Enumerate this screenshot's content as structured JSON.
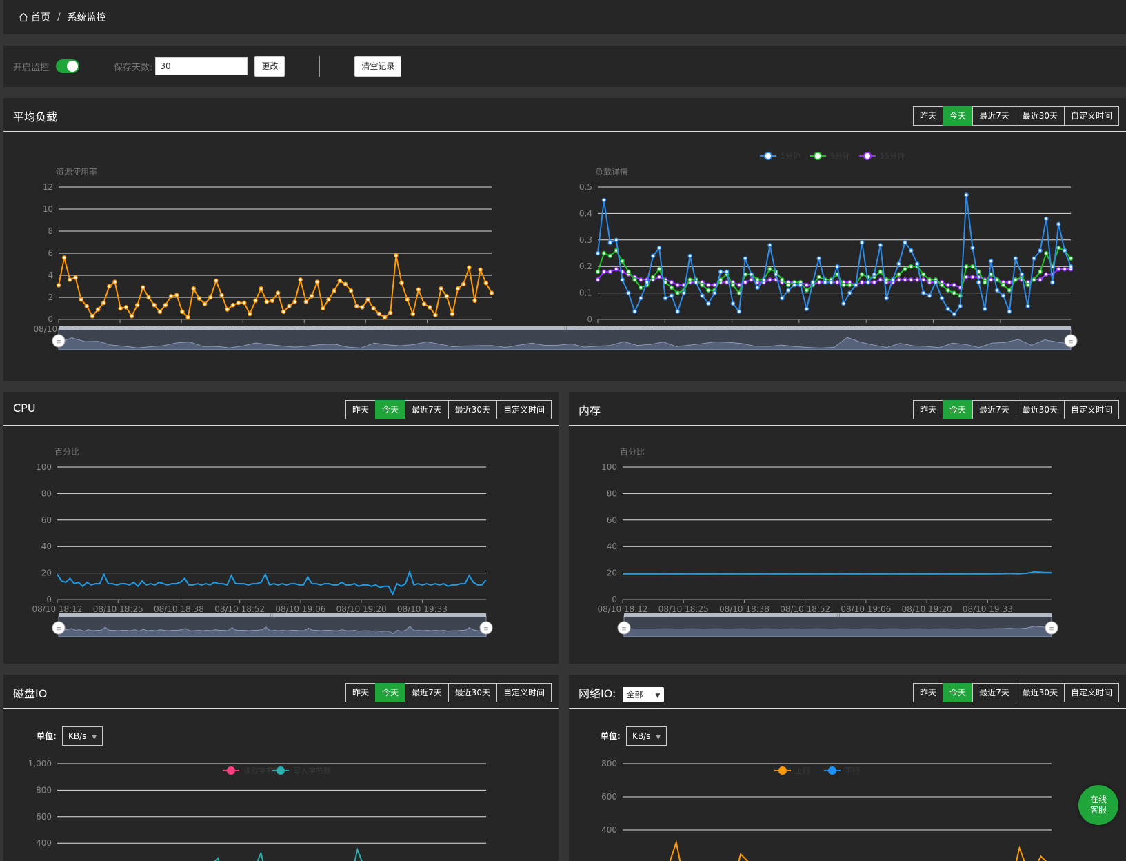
{
  "breadcrumb": {
    "home": "首页",
    "current": "系统监控"
  },
  "controls": {
    "monitor_label": "开启监控",
    "monitor_on": true,
    "days_label": "保存天数:",
    "days_value": "30",
    "change_label": "更改",
    "clear_label": "清空记录"
  },
  "range_buttons": [
    "昨天",
    "今天",
    "最近7天",
    "最近30天",
    "自定义时间"
  ],
  "active_range": "今天",
  "time_ticks": [
    "08/10 18:12",
    "08/10 18:25",
    "08/10 18:38",
    "08/10 18:52",
    "08/10 19:06",
    "08/10 19:20",
    "08/10 19:33"
  ],
  "load": {
    "title": "平均负载",
    "left_axis_title": "资源使用率",
    "right_axis_title": "负载详情",
    "legend": [
      "1分钟",
      "5分钟",
      "15分钟"
    ]
  },
  "cpu": {
    "title": "CPU",
    "axis_title": "百分比"
  },
  "memory": {
    "title": "内存",
    "axis_title": "百分比"
  },
  "disk": {
    "title": "磁盘IO",
    "unit_label": "单位:",
    "unit_value": "KB/s",
    "legend": [
      "读取字节数",
      "写入字节数"
    ]
  },
  "network": {
    "title": "网络IO:",
    "select_value": "全部",
    "unit_label": "单位:",
    "unit_value": "KB/s",
    "legend": [
      "上行",
      "下行"
    ]
  },
  "kefu": {
    "line1": "在线",
    "line2": "客服"
  },
  "colors": {
    "accent": "#20a53a",
    "load": "#ff9900",
    "m1": "#2e8ae6",
    "m5": "#22c02a",
    "m15": "#9933ff",
    "cpu": "#1d9ce8",
    "read": "#ff3f7f",
    "write": "#2db0b0",
    "up": "#ff9900",
    "down": "#1e90ff"
  },
  "chart_data": [
    {
      "type": "line",
      "id": "load_rate",
      "ylabel": "资源使用率",
      "ylim": [
        0,
        12
      ],
      "yticks": [
        0,
        2,
        4,
        6,
        8,
        10,
        12
      ],
      "x_ticks": [
        "08/10 18:12",
        "08/10 18:25",
        "08/10 18:38",
        "08/10 18:52",
        "08/10 19:06",
        "08/10 19:20",
        "08/10 19:33"
      ],
      "grid": true,
      "series": [
        {
          "values": [
            3.1,
            5.6,
            3.6,
            3.8,
            1.8,
            1.2,
            0.3,
            0.9,
            1.5,
            3.0,
            3.4,
            1.0,
            1.1,
            0.3,
            1.3,
            2.9,
            2.0,
            1.3,
            0.7,
            1.3,
            2.1,
            2.2,
            0.7,
            0.2,
            2.8,
            1.9,
            1.4,
            2.0,
            3.5,
            2.2,
            0.9,
            1.3,
            1.5,
            1.5,
            0.5,
            1.7,
            2.8,
            1.6,
            1.7,
            2.4,
            0.7,
            1.2,
            1.6,
            3.6,
            1.6,
            2.1,
            3.4,
            1.0,
            1.8,
            2.6,
            3.5,
            3.2,
            2.6,
            1.2,
            1.1,
            1.8,
            1.0,
            0.5,
            0.2,
            0.6,
            5.8,
            3.3,
            1.8,
            0.5,
            2.7,
            1.4,
            1.1,
            0.4,
            2.8,
            2.1,
            0.5,
            2.8,
            3.2,
            4.7,
            1.7,
            4.5,
            3.3,
            2.4
          ]
        }
      ]
    },
    {
      "type": "line",
      "id": "load_detail",
      "ylabel": "负载详情",
      "ylim": [
        0,
        0.5
      ],
      "yticks": [
        0,
        0.1,
        0.2,
        0.3,
        0.4,
        0.5
      ],
      "x_ticks": [
        "08/10 18:12",
        "08/10 18:25",
        "08/10 18:38",
        "08/10 18:52",
        "08/10 19:06",
        "08/10 19:20",
        "08/10 19:33"
      ],
      "grid": true,
      "legend_position": "top-center",
      "series": [
        {
          "name": "1分钟",
          "values": [
            0.25,
            0.45,
            0.29,
            0.3,
            0.15,
            0.1,
            0.03,
            0.08,
            0.14,
            0.24,
            0.27,
            0.08,
            0.09,
            0.03,
            0.1,
            0.24,
            0.14,
            0.09,
            0.06,
            0.1,
            0.18,
            0.18,
            0.06,
            0.03,
            0.23,
            0.17,
            0.12,
            0.15,
            0.28,
            0.17,
            0.08,
            0.11,
            0.13,
            0.13,
            0.04,
            0.14,
            0.23,
            0.14,
            0.14,
            0.2,
            0.06,
            0.1,
            0.13,
            0.29,
            0.14,
            0.17,
            0.28,
            0.08,
            0.15,
            0.21,
            0.29,
            0.26,
            0.21,
            0.1,
            0.09,
            0.14,
            0.08,
            0.04,
            0.02,
            0.05,
            0.47,
            0.27,
            0.14,
            0.04,
            0.22,
            0.11,
            0.09,
            0.03,
            0.23,
            0.17,
            0.05,
            0.23,
            0.26,
            0.38,
            0.14,
            0.36,
            0.26,
            0.2
          ]
        },
        {
          "name": "5分钟",
          "values": [
            0.18,
            0.25,
            0.24,
            0.26,
            0.22,
            0.18,
            0.15,
            0.12,
            0.13,
            0.16,
            0.19,
            0.14,
            0.12,
            0.1,
            0.11,
            0.15,
            0.15,
            0.13,
            0.11,
            0.11,
            0.15,
            0.17,
            0.13,
            0.1,
            0.17,
            0.17,
            0.15,
            0.15,
            0.19,
            0.18,
            0.15,
            0.13,
            0.14,
            0.14,
            0.11,
            0.13,
            0.16,
            0.15,
            0.15,
            0.17,
            0.13,
            0.13,
            0.13,
            0.17,
            0.16,
            0.16,
            0.18,
            0.15,
            0.15,
            0.17,
            0.19,
            0.2,
            0.2,
            0.17,
            0.15,
            0.15,
            0.13,
            0.11,
            0.1,
            0.09,
            0.2,
            0.2,
            0.18,
            0.14,
            0.17,
            0.15,
            0.13,
            0.11,
            0.15,
            0.16,
            0.13,
            0.15,
            0.18,
            0.25,
            0.2,
            0.27,
            0.26,
            0.23
          ]
        },
        {
          "name": "15分钟",
          "values": [
            0.15,
            0.18,
            0.18,
            0.19,
            0.18,
            0.17,
            0.16,
            0.15,
            0.15,
            0.15,
            0.16,
            0.15,
            0.14,
            0.13,
            0.13,
            0.14,
            0.14,
            0.14,
            0.13,
            0.13,
            0.14,
            0.14,
            0.14,
            0.13,
            0.14,
            0.15,
            0.14,
            0.14,
            0.15,
            0.15,
            0.14,
            0.14,
            0.14,
            0.14,
            0.13,
            0.13,
            0.14,
            0.14,
            0.14,
            0.14,
            0.14,
            0.14,
            0.13,
            0.14,
            0.14,
            0.14,
            0.15,
            0.14,
            0.14,
            0.15,
            0.15,
            0.15,
            0.15,
            0.15,
            0.14,
            0.14,
            0.14,
            0.13,
            0.13,
            0.12,
            0.16,
            0.16,
            0.16,
            0.15,
            0.15,
            0.15,
            0.14,
            0.14,
            0.15,
            0.15,
            0.14,
            0.15,
            0.15,
            0.17,
            0.17,
            0.19,
            0.19,
            0.19
          ]
        }
      ]
    },
    {
      "type": "line",
      "id": "cpu",
      "ylabel": "百分比",
      "ylim": [
        0,
        100
      ],
      "yticks": [
        0,
        20,
        40,
        60,
        80,
        100
      ],
      "x_ticks": [
        "08/10 18:12",
        "08/10 18:25",
        "08/10 18:38",
        "08/10 18:52",
        "08/10 19:06",
        "08/10 19:20",
        "08/10 19:33"
      ],
      "grid": true,
      "series": [
        {
          "values": [
            19,
            14,
            13,
            16,
            12,
            13,
            10,
            13,
            11,
            12,
            12,
            19,
            12,
            12,
            11,
            12,
            12,
            11,
            13,
            10,
            14,
            11,
            12,
            11,
            13,
            12,
            11,
            12,
            12,
            13,
            16,
            11,
            11,
            12,
            11,
            12,
            11,
            13,
            12,
            12,
            11,
            18,
            12,
            12,
            12,
            11,
            12,
            12,
            13,
            19,
            11,
            12,
            11,
            12,
            11,
            12,
            12,
            11,
            11,
            17,
            12,
            12,
            11,
            12,
            12,
            11,
            11,
            13,
            11,
            11,
            12,
            10,
            11,
            11,
            10,
            11,
            9,
            10,
            10,
            4,
            12,
            10,
            12,
            21,
            11,
            12,
            11,
            12,
            11,
            12,
            11,
            12,
            10,
            11,
            11,
            12,
            12,
            18,
            13,
            11,
            11,
            15
          ]
        }
      ]
    },
    {
      "type": "line",
      "id": "memory",
      "ylabel": "百分比",
      "ylim": [
        0,
        100
      ],
      "yticks": [
        0,
        20,
        40,
        60,
        80,
        100
      ],
      "x_ticks": [
        "08/10 18:12",
        "08/10 18:25",
        "08/10 18:38",
        "08/10 18:52",
        "08/10 19:06",
        "08/10 19:20",
        "08/10 19:33"
      ],
      "grid": true,
      "series": [
        {
          "values": [
            19.3,
            19.3,
            19.3,
            19.3,
            19.3,
            19.4,
            19.3,
            19.3,
            19.4,
            19.3,
            19.3,
            19.4,
            19.3,
            19.3,
            19.4,
            19.3,
            19.3,
            19.4,
            19.3,
            19.3,
            19.4,
            19.3,
            19.3,
            19.4,
            19.3,
            19.3,
            19.4,
            19.3,
            19.3,
            19.4,
            19.3,
            19.3,
            19.4,
            19.3,
            19.3,
            19.4,
            19.3,
            19.3,
            19.4,
            19.3,
            19.3,
            19.4,
            19.3,
            19.3,
            19.4,
            19.5,
            19.7,
            19.4,
            19.8,
            21.0,
            20.5,
            20.3
          ]
        }
      ]
    },
    {
      "type": "line",
      "id": "disk_io",
      "ylabel": "",
      "ylim": [
        0,
        1000
      ],
      "yticks": [
        400,
        600,
        800,
        1000
      ],
      "grid": true,
      "legend_position": "top-center",
      "series": [
        {
          "name": "读取字节数",
          "values": [
            0,
            0,
            0,
            0,
            0,
            0,
            0,
            0,
            0,
            0,
            0,
            0,
            0,
            0,
            0,
            0,
            0,
            0,
            0,
            0,
            0,
            0,
            0,
            0,
            0,
            0,
            0,
            0,
            0,
            0,
            0,
            0,
            0,
            0,
            0,
            0,
            0,
            0,
            0,
            0,
            0
          ]
        },
        {
          "name": "写入字节数",
          "values": [
            0,
            0,
            0,
            0,
            0,
            0,
            0,
            0,
            0,
            0,
            0,
            0,
            0,
            0,
            0,
            0,
            0,
            0,
            0,
            0,
            0,
            0,
            0,
            0,
            0,
            0,
            0,
            0,
            0,
            0,
            0,
            0,
            0,
            0,
            0,
            0,
            0,
            0,
            0,
            0,
            0
          ]
        }
      ],
      "spikes": [
        {
          "series": "写入字节数",
          "index_fraction": 0.365,
          "value": 430
        },
        {
          "series": "写入字节数",
          "index_fraction": 0.47,
          "value": 390
        },
        {
          "series": "写入字节数",
          "index_fraction": 0.705,
          "value": 420
        }
      ]
    },
    {
      "type": "line",
      "id": "network_io",
      "ylabel": "",
      "ylim": [
        0,
        800
      ],
      "yticks": [
        400,
        600,
        800
      ],
      "grid": true,
      "legend_position": "top-center",
      "series": [
        {
          "name": "上行",
          "values": [
            0,
            0,
            0,
            0,
            0,
            0,
            0,
            0,
            0,
            0,
            0,
            0,
            0,
            0,
            0,
            0,
            0,
            0,
            0,
            0,
            0,
            0,
            0,
            0,
            0,
            0,
            0,
            0,
            0,
            0,
            0,
            0,
            0,
            0,
            0,
            0,
            0,
            0,
            0,
            0,
            0
          ]
        },
        {
          "name": "下行",
          "values": [
            0,
            0,
            0,
            0,
            0,
            0,
            0,
            0,
            0,
            0,
            0,
            0,
            0,
            0,
            0,
            0,
            0,
            0,
            0,
            0,
            0,
            0,
            0,
            0,
            0,
            0,
            0,
            0,
            0,
            0,
            0,
            0,
            0,
            0,
            0,
            0,
            0,
            0,
            0,
            0,
            0
          ]
        }
      ],
      "spikes": [
        {
          "series": "上行",
          "index_fraction": 0.12,
          "value": 390
        },
        {
          "series": "上行",
          "index_fraction": 0.285,
          "value": 380
        },
        {
          "series": "上行",
          "index_fraction": 0.93,
          "value": 350
        },
        {
          "series": "上行",
          "index_fraction": 0.985,
          "value": 360
        }
      ]
    }
  ]
}
